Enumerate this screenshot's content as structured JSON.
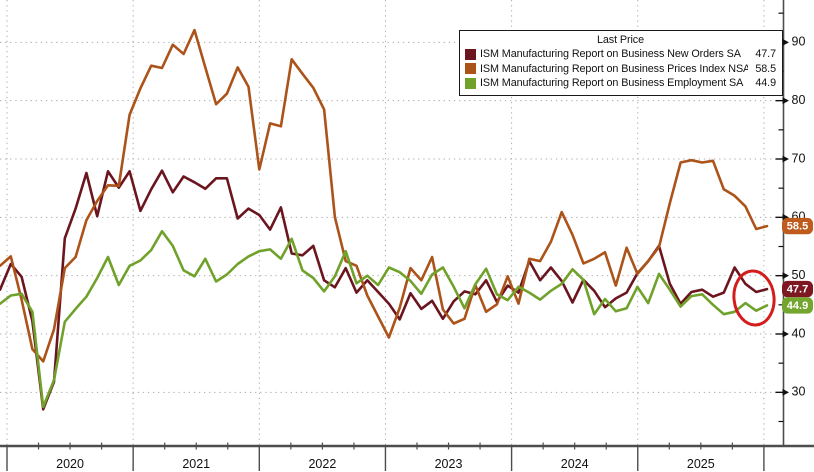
{
  "chart_data": {
    "type": "line",
    "title": "",
    "legend_title": "Last Price",
    "legend_position": "top-right",
    "grid": true,
    "x_start": "2019-12",
    "x_end": "2025-11",
    "x_frequency": "monthly",
    "x_year_labels": [
      "2020",
      "2021",
      "2022",
      "2023",
      "2024",
      "2025"
    ],
    "y_ticks": [
      30,
      40,
      50,
      60,
      70,
      80,
      90
    ],
    "y_minor_ticks": [
      25,
      35,
      45,
      55,
      65,
      75,
      85,
      95
    ],
    "ylim": [
      21,
      97
    ],
    "series": [
      {
        "name": "new-orders",
        "label": "ISM Manufacturing Report on Business New Orders SA",
        "last": "47.7",
        "color": "#6b161f",
        "badge_color": "#7d1722",
        "values": [
          47.6,
          52.0,
          49.8,
          42.2,
          27.1,
          31.8,
          56.4,
          61.5,
          67.6,
          60.2,
          67.9,
          65.1,
          67.9,
          61.1,
          64.8,
          68.0,
          64.3,
          67.0,
          66.0,
          64.9,
          66.7,
          66.7,
          59.8,
          61.5,
          60.4,
          57.9,
          61.7,
          53.8,
          53.5,
          55.1,
          49.2,
          48.0,
          51.3,
          47.1,
          49.2,
          47.2,
          45.2,
          42.5,
          47.0,
          44.3,
          45.7,
          42.6,
          45.6,
          47.3,
          46.8,
          49.2,
          45.5,
          48.3,
          47.1,
          52.5,
          49.2,
          51.4,
          49.1,
          45.4,
          49.3,
          47.4,
          44.6,
          46.1,
          47.1,
          50.4,
          52.5,
          55.1,
          48.6,
          45.2,
          47.2,
          47.6,
          46.4,
          47.1,
          51.4,
          48.6,
          47.2,
          47.7
        ]
      },
      {
        "name": "prices",
        "label": "ISM Manufacturing Report on Business Prices Index NSA",
        "last": "58.5",
        "color": "#ac531a",
        "badge_color": "#bf5b1d",
        "values": [
          51.7,
          53.3,
          45.9,
          37.4,
          35.3,
          40.8,
          51.3,
          53.2,
          59.5,
          62.8,
          65.5,
          65.4,
          77.6,
          82.1,
          86.0,
          85.6,
          89.6,
          88.0,
          92.1,
          85.7,
          79.4,
          81.2,
          85.7,
          82.4,
          68.2,
          76.1,
          75.6,
          87.1,
          84.6,
          82.2,
          78.5,
          60.0,
          52.5,
          51.7,
          46.6,
          43.0,
          39.4,
          44.5,
          51.3,
          49.2,
          53.2,
          44.2,
          41.8,
          42.6,
          48.4,
          43.8,
          45.1,
          49.9,
          45.2,
          52.9,
          52.5,
          55.8,
          60.9,
          57.0,
          52.1,
          52.9,
          54.0,
          48.3,
          54.8,
          50.3,
          52.5,
          54.9,
          62.4,
          69.4,
          69.8,
          69.4,
          69.7,
          64.8,
          63.7,
          61.9,
          58.0,
          58.5
        ]
      },
      {
        "name": "employment",
        "label": "ISM Manufacturing Report on Business Employment SA",
        "last": "44.9",
        "color": "#70a22b",
        "badge_color": "#74a52e",
        "values": [
          45.2,
          46.6,
          46.9,
          43.8,
          27.5,
          32.1,
          42.1,
          44.3,
          46.4,
          49.6,
          53.2,
          48.4,
          51.7,
          52.6,
          54.4,
          57.6,
          55.1,
          50.9,
          49.9,
          52.9,
          49.0,
          50.2,
          52.0,
          53.3,
          54.2,
          54.5,
          52.9,
          56.3,
          50.9,
          49.6,
          47.3,
          49.9,
          54.2,
          48.7,
          50.0,
          48.4,
          51.4,
          50.6,
          49.1,
          46.9,
          50.2,
          51.4,
          48.1,
          44.4,
          48.5,
          51.2,
          46.8,
          45.8,
          48.1,
          47.1,
          45.9,
          47.4,
          48.6,
          51.1,
          49.3,
          43.4,
          46.0,
          43.9,
          44.4,
          48.1,
          45.3,
          50.3,
          47.6,
          44.7,
          46.5,
          46.8,
          45.0,
          43.4,
          43.8,
          45.3,
          44.0,
          44.9
        ]
      }
    ],
    "annotation": {
      "type": "ellipse-highlight",
      "color": "#d41c1c",
      "target": "latest New Orders and Employment values"
    },
    "style": {
      "grid_color": "#ababab",
      "axis_color": "#4d4d4d",
      "label_color": "#111111",
      "background": "#ffffff"
    }
  }
}
